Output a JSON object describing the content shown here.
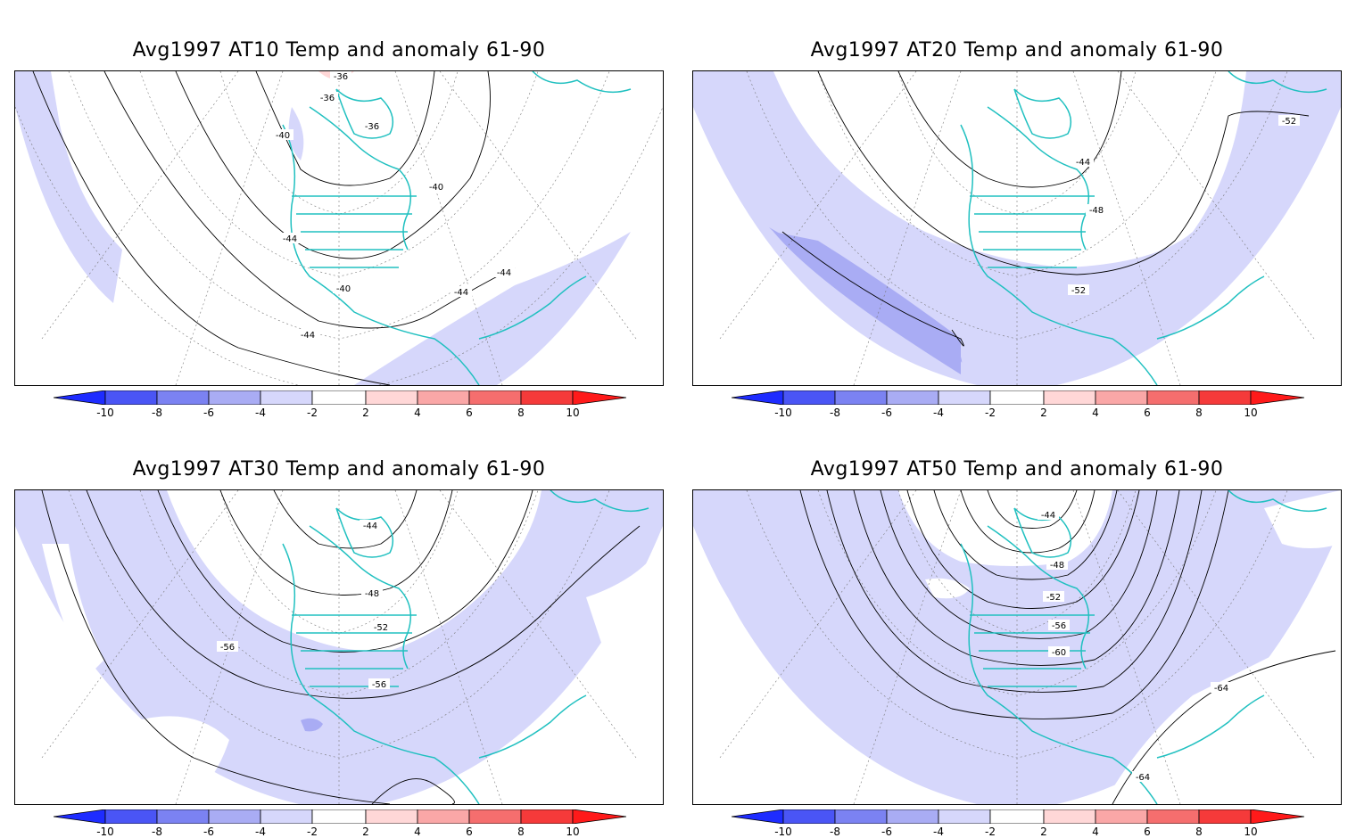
{
  "colorbar": {
    "labels": [
      "-10",
      "-8",
      "-6",
      "-4",
      "-2",
      "2",
      "4",
      "6",
      "8",
      "10"
    ],
    "colors": [
      "#1e2cff",
      "#4a55f5",
      "#7b82f2",
      "#a9acf4",
      "#d6d7fb",
      "#ffffff",
      "#ffd7d7",
      "#faa7a7",
      "#f56e6e",
      "#f53a3a",
      "#ff1a1a"
    ]
  },
  "panels": [
    {
      "title": "Avg1997 AT10 Temp and anomaly 61-90",
      "contour_labels": [
        "-36",
        "-36",
        "-36",
        "-40",
        "-40",
        "-44",
        "-40",
        "-44",
        "-44",
        "-44"
      ]
    },
    {
      "title": "Avg1997 AT20 Temp and anomaly 61-90",
      "contour_labels": [
        "-52",
        "-44",
        "-48",
        "-52"
      ]
    },
    {
      "title": "Avg1997 AT30 Temp and anomaly 61-90",
      "contour_labels": [
        "-44",
        "-48",
        "-52",
        "-56",
        "-56"
      ]
    },
    {
      "title": "Avg1997 AT50 Temp and anomaly 61-90",
      "contour_labels": [
        "-44",
        "-48",
        "-52",
        "-56",
        "-60",
        "-64",
        "-64"
      ]
    }
  ]
}
